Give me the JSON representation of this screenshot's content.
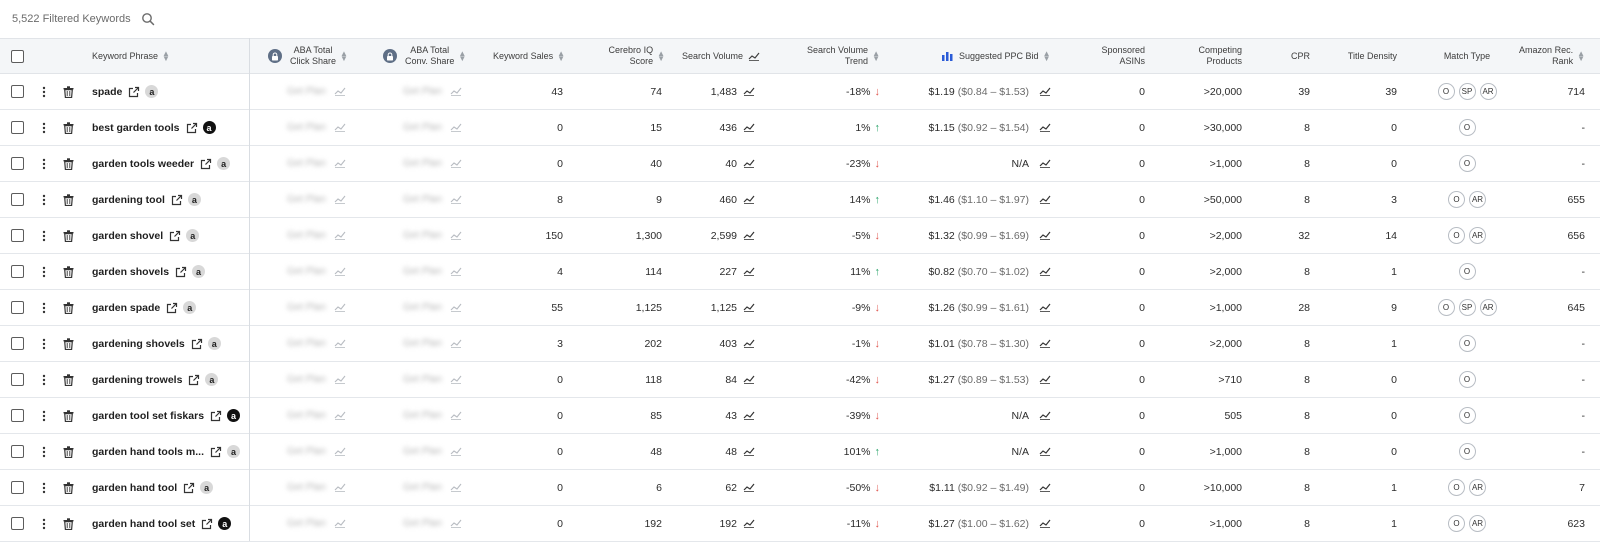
{
  "header": {
    "count_text": "5,522 Filtered Keywords"
  },
  "columns": {
    "keyword_phrase": "Keyword Phrase",
    "aba_click_1": "ABA Total",
    "aba_click_2": "Click Share",
    "aba_conv_1": "ABA Total",
    "aba_conv_2": "Conv. Share",
    "keyword_sales": "Keyword Sales",
    "ciq_1": "Cerebro IQ",
    "ciq_2": "Score",
    "search_volume": "Search Volume",
    "svt_1": "Search Volume",
    "svt_2": "Trend",
    "ppc": "Suggested PPC Bid",
    "sponsored_1": "Sponsored",
    "sponsored_2": "ASINs",
    "competing_1": "Competing",
    "competing_2": "Products",
    "cpr": "CPR",
    "title_density": "Title Density",
    "match_type": "Match Type",
    "rank_1": "Amazon Rec.",
    "rank_2": "Rank"
  },
  "rows": [
    {
      "keyword": "spade",
      "amz": "light",
      "aba_click": "Get Plan",
      "aba_conv": "Get Plan",
      "sales": "43",
      "ciq": "74",
      "sv": "1,483",
      "trend": "-18%",
      "dir": "down",
      "ppc": "$1.19",
      "ppc_range": "($0.84 – $1.53)",
      "sponsored": "0",
      "competing": ">20,000",
      "cpr": "39",
      "title_density": "39",
      "match": [
        "O",
        "SP",
        "AR"
      ],
      "rank": "714"
    },
    {
      "keyword": "best garden tools",
      "amz": "dark",
      "aba_click": "Get Plan",
      "aba_conv": "Get Plan",
      "sales": "0",
      "ciq": "15",
      "sv": "436",
      "trend": "1%",
      "dir": "up",
      "ppc": "$1.15",
      "ppc_range": "($0.92 – $1.54)",
      "sponsored": "0",
      "competing": ">30,000",
      "cpr": "8",
      "title_density": "0",
      "match": [
        "O"
      ],
      "rank": "-"
    },
    {
      "keyword": "garden tools weeder",
      "amz": "light",
      "aba_click": "Get Plan",
      "aba_conv": "Get Plan",
      "sales": "0",
      "ciq": "40",
      "sv": "40",
      "trend": "-23%",
      "dir": "down",
      "ppc": "N/A",
      "ppc_range": "",
      "sponsored": "0",
      "competing": ">1,000",
      "cpr": "8",
      "title_density": "0",
      "match": [
        "O"
      ],
      "rank": "-"
    },
    {
      "keyword": "gardening tool",
      "amz": "light",
      "aba_click": "Get Plan",
      "aba_conv": "Get Plan",
      "sales": "8",
      "ciq": "9",
      "sv": "460",
      "trend": "14%",
      "dir": "up",
      "ppc": "$1.46",
      "ppc_range": "($1.10 – $1.97)",
      "sponsored": "0",
      "competing": ">50,000",
      "cpr": "8",
      "title_density": "3",
      "match": [
        "O",
        "AR"
      ],
      "rank": "655"
    },
    {
      "keyword": "garden shovel",
      "amz": "light",
      "aba_click": "Get Plan",
      "aba_conv": "Get Plan",
      "sales": "150",
      "ciq": "1,300",
      "sv": "2,599",
      "trend": "-5%",
      "dir": "down",
      "ppc": "$1.32",
      "ppc_range": "($0.99 – $1.69)",
      "sponsored": "0",
      "competing": ">2,000",
      "cpr": "32",
      "title_density": "14",
      "match": [
        "O",
        "AR"
      ],
      "rank": "656"
    },
    {
      "keyword": "garden shovels",
      "amz": "light",
      "aba_click": "Get Plan",
      "aba_conv": "Get Plan",
      "sales": "4",
      "ciq": "114",
      "sv": "227",
      "trend": "11%",
      "dir": "up",
      "ppc": "$0.82",
      "ppc_range": "($0.70 – $1.02)",
      "sponsored": "0",
      "competing": ">2,000",
      "cpr": "8",
      "title_density": "1",
      "match": [
        "O"
      ],
      "rank": "-"
    },
    {
      "keyword": "garden spade",
      "amz": "light",
      "aba_click": "Get Plan",
      "aba_conv": "Get Plan",
      "sales": "55",
      "ciq": "1,125",
      "sv": "1,125",
      "trend": "-9%",
      "dir": "down",
      "ppc": "$1.26",
      "ppc_range": "($0.99 – $1.61)",
      "sponsored": "0",
      "competing": ">1,000",
      "cpr": "28",
      "title_density": "9",
      "match": [
        "O",
        "SP",
        "AR"
      ],
      "rank": "645"
    },
    {
      "keyword": "gardening shovels",
      "amz": "light",
      "aba_click": "Get Plan",
      "aba_conv": "Get Plan",
      "sales": "3",
      "ciq": "202",
      "sv": "403",
      "trend": "-1%",
      "dir": "down",
      "ppc": "$1.01",
      "ppc_range": "($0.78 – $1.30)",
      "sponsored": "0",
      "competing": ">2,000",
      "cpr": "8",
      "title_density": "1",
      "match": [
        "O"
      ],
      "rank": "-"
    },
    {
      "keyword": "gardening trowels",
      "amz": "light",
      "aba_click": "Get Plan",
      "aba_conv": "Get Plan",
      "sales": "0",
      "ciq": "118",
      "sv": "84",
      "trend": "-42%",
      "dir": "down",
      "ppc": "$1.27",
      "ppc_range": "($0.89 – $1.53)",
      "sponsored": "0",
      "competing": ">710",
      "cpr": "8",
      "title_density": "0",
      "match": [
        "O"
      ],
      "rank": "-"
    },
    {
      "keyword": "garden tool set fiskars",
      "amz": "dark",
      "aba_click": "Get Plan",
      "aba_conv": "Get Plan",
      "sales": "0",
      "ciq": "85",
      "sv": "43",
      "trend": "-39%",
      "dir": "down",
      "ppc": "N/A",
      "ppc_range": "",
      "sponsored": "0",
      "competing": "505",
      "cpr": "8",
      "title_density": "0",
      "match": [
        "O"
      ],
      "rank": "-"
    },
    {
      "keyword": "garden hand tools m...",
      "amz": "light",
      "aba_click": "Get Plan",
      "aba_conv": "Get Plan",
      "sales": "0",
      "ciq": "48",
      "sv": "48",
      "trend": "101%",
      "dir": "up",
      "ppc": "N/A",
      "ppc_range": "",
      "sponsored": "0",
      "competing": ">1,000",
      "cpr": "8",
      "title_density": "0",
      "match": [
        "O"
      ],
      "rank": "-"
    },
    {
      "keyword": "garden hand tool",
      "amz": "light",
      "aba_click": "Get Plan",
      "aba_conv": "Get Plan",
      "sales": "0",
      "ciq": "6",
      "sv": "62",
      "trend": "-50%",
      "dir": "down",
      "ppc": "$1.11",
      "ppc_range": "($0.92 – $1.49)",
      "sponsored": "0",
      "competing": ">10,000",
      "cpr": "8",
      "title_density": "1",
      "match": [
        "O",
        "AR"
      ],
      "rank": "7"
    },
    {
      "keyword": "garden hand tool set",
      "amz": "dark",
      "aba_click": "Get Plan",
      "aba_conv": "Get Plan",
      "sales": "0",
      "ciq": "192",
      "sv": "192",
      "trend": "-11%",
      "dir": "down",
      "ppc": "$1.27",
      "ppc_range": "($1.00 – $1.62)",
      "sponsored": "0",
      "competing": ">1,000",
      "cpr": "8",
      "title_density": "1",
      "match": [
        "O",
        "AR"
      ],
      "rank": "623"
    }
  ]
}
